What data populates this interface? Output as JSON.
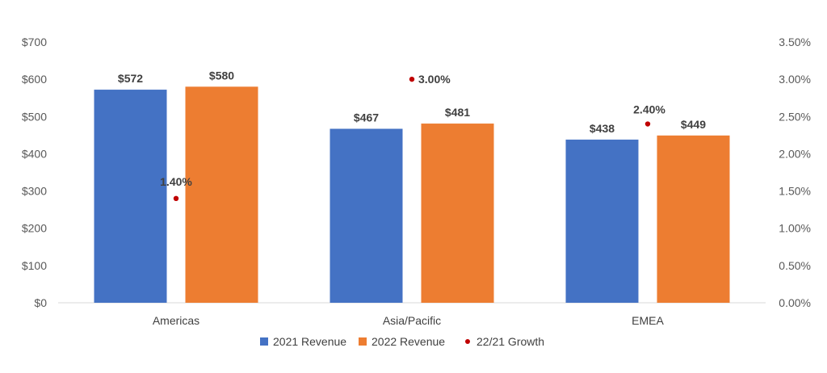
{
  "chart_data": {
    "type": "bar",
    "title": "",
    "xlabel": "",
    "ylabel": "",
    "categories": [
      "Americas",
      "Asia/Pacific",
      "EMEA"
    ],
    "series": [
      {
        "name": "2021 Revenue",
        "kind": "bar",
        "axis": "left",
        "color": "#4472C4",
        "values": [
          572,
          467,
          438
        ],
        "labels": [
          "$572",
          "$467",
          "$438"
        ]
      },
      {
        "name": "2022 Revenue",
        "kind": "bar",
        "axis": "left",
        "color": "#ED7D31",
        "values": [
          580,
          481,
          449
        ],
        "labels": [
          "$580",
          "$481",
          "$449"
        ]
      },
      {
        "name": "22/21 Growth",
        "kind": "scatter",
        "axis": "right",
        "color": "#C00000",
        "values": [
          1.4,
          3.0,
          2.4
        ],
        "labels": [
          "1.40%",
          "3.00%",
          "2.40%"
        ]
      }
    ],
    "ylim": [
      0,
      700
    ],
    "y2lim": [
      0,
      3.5
    ],
    "yticks": [
      "$0",
      "$100",
      "$200",
      "$300",
      "$400",
      "$500",
      "$600",
      "$700"
    ],
    "y2ticks": [
      "0.00%",
      "0.50%",
      "1.00%",
      "1.50%",
      "2.00%",
      "2.50%",
      "3.00%",
      "3.50%"
    ],
    "grid": false,
    "legend_position": "bottom"
  }
}
